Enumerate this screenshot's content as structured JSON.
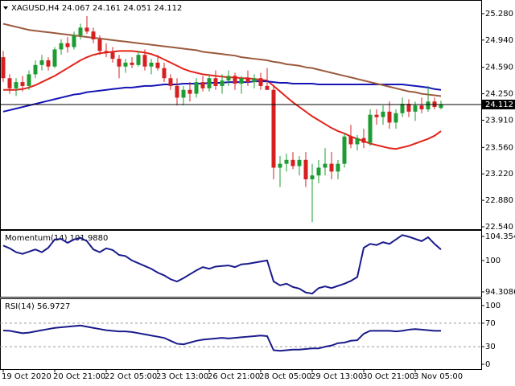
{
  "chart_data": [
    {
      "type": "candlestick",
      "title": "XAGUSD,H4  24.067 24.161 24.051 24.112",
      "categories": [
        "19 Oct 2020",
        null,
        null,
        null,
        null,
        null,
        null,
        null,
        "20 Oct 21:00",
        null,
        null,
        null,
        null,
        null,
        null,
        null,
        "22 Oct 05:00",
        null,
        null,
        null,
        null,
        null,
        null,
        null,
        "23 Oct 13:00",
        null,
        null,
        null,
        null,
        null,
        null,
        null,
        "26 Oct 21:00",
        null,
        null,
        null,
        null,
        null,
        null,
        null,
        "28 Oct 05:00",
        null,
        null,
        null,
        null,
        null,
        null,
        null,
        "29 Oct 13:00",
        null,
        null,
        null,
        null,
        null,
        null,
        null,
        "30 Oct 21:00",
        null,
        null,
        null,
        null,
        null,
        null,
        null,
        "3 Nov 05:00",
        null,
        null,
        null,
        null
      ],
      "candles": [
        [
          24.72,
          24.8,
          24.4,
          24.45
        ],
        [
          24.45,
          24.5,
          24.25,
          24.32
        ],
        [
          24.32,
          24.45,
          24.22,
          24.4
        ],
        [
          24.4,
          24.48,
          24.28,
          24.35
        ],
        [
          24.35,
          24.55,
          24.3,
          24.5
        ],
        [
          24.5,
          24.68,
          24.45,
          24.62
        ],
        [
          24.62,
          24.75,
          24.55,
          24.68
        ],
        [
          24.68,
          24.72,
          24.55,
          24.6
        ],
        [
          24.6,
          24.85,
          24.58,
          24.82
        ],
        [
          24.82,
          24.95,
          24.75,
          24.9
        ],
        [
          24.9,
          24.98,
          24.78,
          24.85
        ],
        [
          24.85,
          25.05,
          24.82,
          25.0
        ],
        [
          25.0,
          25.15,
          24.95,
          25.1
        ],
        [
          25.1,
          25.25,
          25.02,
          25.05
        ],
        [
          25.05,
          25.1,
          24.9,
          24.95
        ],
        [
          24.95,
          25.0,
          24.75,
          24.8
        ],
        [
          24.8,
          24.9,
          24.72,
          24.78
        ],
        [
          24.78,
          24.85,
          24.65,
          24.7
        ],
        [
          24.7,
          24.75,
          24.45,
          24.6
        ],
        [
          24.6,
          24.7,
          24.52,
          24.65
        ],
        [
          24.65,
          24.72,
          24.58,
          24.62
        ],
        [
          24.62,
          24.8,
          24.6,
          24.75
        ],
        [
          24.75,
          24.82,
          24.55,
          24.6
        ],
        [
          24.6,
          24.7,
          24.5,
          24.65
        ],
        [
          24.65,
          24.75,
          24.55,
          24.58
        ],
        [
          24.58,
          24.65,
          24.4,
          24.45
        ],
        [
          24.45,
          24.5,
          24.3,
          24.35
        ],
        [
          24.35,
          24.45,
          24.1,
          24.2
        ],
        [
          24.2,
          24.35,
          24.1,
          24.3
        ],
        [
          24.3,
          24.4,
          24.15,
          24.25
        ],
        [
          24.25,
          24.45,
          24.2,
          24.4
        ],
        [
          24.4,
          24.48,
          24.28,
          24.32
        ],
        [
          24.32,
          24.5,
          24.28,
          24.45
        ],
        [
          24.45,
          24.55,
          24.3,
          24.35
        ],
        [
          24.35,
          24.5,
          24.25,
          24.42
        ],
        [
          24.42,
          24.55,
          24.35,
          24.48
        ],
        [
          24.48,
          24.52,
          24.3,
          24.38
        ],
        [
          24.38,
          24.48,
          24.25,
          24.45
        ],
        [
          24.45,
          24.55,
          24.35,
          24.4
        ],
        [
          24.4,
          24.5,
          24.32,
          24.45
        ],
        [
          24.45,
          24.52,
          24.3,
          24.35
        ],
        [
          24.35,
          24.58,
          24.3,
          24.3
        ],
        [
          24.3,
          24.35,
          23.15,
          23.3
        ],
        [
          23.3,
          23.45,
          23.05,
          23.35
        ],
        [
          23.35,
          23.48,
          23.25,
          23.4
        ],
        [
          23.4,
          23.5,
          23.28,
          23.32
        ],
        [
          23.32,
          23.45,
          23.2,
          23.4
        ],
        [
          23.4,
          23.5,
          23.05,
          23.15
        ],
        [
          23.15,
          23.35,
          22.6,
          23.2
        ],
        [
          23.2,
          23.4,
          23.1,
          23.3
        ],
        [
          23.3,
          23.55,
          23.2,
          23.35
        ],
        [
          23.35,
          23.5,
          23.15,
          23.25
        ],
        [
          23.25,
          23.4,
          23.15,
          23.35
        ],
        [
          23.35,
          23.75,
          23.3,
          23.7
        ],
        [
          23.7,
          23.85,
          23.55,
          23.6
        ],
        [
          23.6,
          23.72,
          23.52,
          23.68
        ],
        [
          23.68,
          23.8,
          23.55,
          23.62
        ],
        [
          23.62,
          24.05,
          23.58,
          23.98
        ],
        [
          23.98,
          24.05,
          23.85,
          23.95
        ],
        [
          23.95,
          24.1,
          23.85,
          24.02
        ],
        [
          24.02,
          24.15,
          23.8,
          23.88
        ],
        [
          23.88,
          24.05,
          23.8,
          24.0
        ],
        [
          24.0,
          24.2,
          23.95,
          24.12
        ],
        [
          24.12,
          24.18,
          23.95,
          24.02
        ],
        [
          24.02,
          24.15,
          23.9,
          24.1
        ],
        [
          24.1,
          24.2,
          24.0,
          24.05
        ],
        [
          24.05,
          24.35,
          24.02,
          24.15
        ],
        [
          24.15,
          24.2,
          24.05,
          24.08
        ],
        [
          24.067,
          24.161,
          24.051,
          24.112
        ]
      ],
      "up_color": "#1e9c33",
      "down_color": "#d62020",
      "series": [
        {
          "color": "#e3241b",
          "values": [
            24.3,
            24.3,
            24.3,
            24.31,
            24.33,
            24.36,
            24.4,
            24.44,
            24.48,
            24.53,
            24.58,
            24.63,
            24.68,
            24.72,
            24.75,
            24.77,
            24.78,
            24.79,
            24.8,
            24.8,
            24.8,
            24.79,
            24.78,
            24.76,
            24.73,
            24.69,
            24.65,
            24.61,
            24.57,
            24.54,
            24.52,
            24.5,
            24.49,
            24.48,
            24.47,
            24.46,
            24.46,
            24.45,
            24.45,
            24.44,
            24.43,
            24.42,
            24.35,
            24.28,
            24.21,
            24.14,
            24.08,
            24.02,
            23.96,
            23.91,
            23.86,
            23.81,
            23.77,
            23.74,
            23.7,
            23.67,
            23.64,
            23.61,
            23.59,
            23.57,
            23.55,
            23.54,
            23.56,
            23.58,
            23.61,
            23.64,
            23.67,
            23.71,
            23.77
          ]
        },
        {
          "color": "#1515b5",
          "values": [
            24.02,
            24.04,
            24.06,
            24.08,
            24.1,
            24.12,
            24.14,
            24.16,
            24.18,
            24.2,
            24.22,
            24.24,
            24.25,
            24.27,
            24.28,
            24.29,
            24.3,
            24.31,
            24.32,
            24.33,
            24.33,
            24.34,
            24.35,
            24.35,
            24.36,
            24.37,
            24.37,
            24.37,
            24.38,
            24.38,
            24.38,
            24.38,
            24.39,
            24.39,
            24.39,
            24.4,
            24.4,
            24.4,
            24.4,
            24.41,
            24.41,
            24.41,
            24.4,
            24.39,
            24.39,
            24.38,
            24.38,
            24.38,
            24.38,
            24.37,
            24.37,
            24.37,
            24.37,
            24.37,
            24.37,
            24.37,
            24.37,
            24.37,
            24.37,
            24.37,
            24.37,
            24.37,
            24.37,
            24.36,
            24.35,
            24.34,
            24.33,
            24.31,
            24.3
          ]
        },
        {
          "color": "#9b5a3c",
          "values": [
            25.15,
            25.13,
            25.11,
            25.09,
            25.07,
            25.06,
            25.05,
            25.04,
            25.03,
            25.02,
            25.01,
            25.0,
            24.99,
            24.98,
            24.97,
            24.96,
            24.95,
            24.94,
            24.93,
            24.92,
            24.91,
            24.9,
            24.89,
            24.88,
            24.87,
            24.86,
            24.85,
            24.84,
            24.83,
            24.82,
            24.81,
            24.79,
            24.78,
            24.77,
            24.76,
            24.75,
            24.74,
            24.72,
            24.71,
            24.7,
            24.69,
            24.68,
            24.66,
            24.65,
            24.63,
            24.62,
            24.61,
            24.59,
            24.58,
            24.56,
            24.54,
            24.52,
            24.5,
            24.48,
            24.46,
            24.44,
            24.42,
            24.4,
            24.38,
            24.36,
            24.34,
            24.32,
            24.3,
            24.28,
            24.27,
            24.25,
            24.24,
            24.23,
            24.22
          ]
        }
      ],
      "price_line": {
        "value": 24.112,
        "label": "24.112"
      },
      "ylim": [
        22.509,
        25.445
      ],
      "yticks": [
        {
          "value": 25.28,
          "label": "25.280"
        },
        {
          "value": 24.94,
          "label": "24.940"
        },
        {
          "value": 24.59,
          "label": "24.590"
        },
        {
          "value": 24.25,
          "label": "24.250"
        },
        {
          "value": 23.91,
          "label": "23.910"
        },
        {
          "value": 23.56,
          "label": "23.560"
        },
        {
          "value": 23.22,
          "label": "23.220"
        },
        {
          "value": 22.88,
          "label": "22.880"
        },
        {
          "value": 22.54,
          "label": "22.540"
        }
      ]
    },
    {
      "type": "line",
      "title": "Momentum(14) 101.9880",
      "color": "#1a1a8c",
      "values": [
        102.7,
        102.2,
        101.5,
        101.2,
        101.6,
        102.0,
        101.5,
        102.3,
        103.8,
        103.9,
        103.2,
        103.8,
        104.1,
        103.5,
        102.0,
        101.5,
        102.2,
        101.9,
        101.0,
        100.8,
        100.0,
        99.5,
        99.0,
        98.5,
        97.8,
        97.3,
        96.6,
        96.2,
        96.8,
        97.5,
        98.2,
        98.8,
        98.5,
        98.9,
        99.0,
        99.1,
        98.8,
        99.3,
        99.4,
        99.6,
        99.8,
        100.0,
        96.2,
        95.5,
        95.8,
        95.2,
        94.9,
        94.2,
        94.0,
        95.0,
        95.3,
        95.0,
        95.4,
        95.8,
        96.3,
        97.0,
        102.3,
        103.0,
        102.8,
        103.3,
        103.0,
        103.8,
        104.6,
        104.3,
        103.9,
        103.5,
        104.2,
        103.0,
        101.988
      ],
      "ylim": [
        93.435,
        105.374
      ],
      "yticks": [
        104.3549,
        100,
        94.3086
      ]
    },
    {
      "type": "line",
      "title": "RSI(14) 56.9727",
      "color": "#1a1a8c",
      "values": [
        57.5,
        57,
        55,
        53,
        54,
        56,
        58,
        60,
        62,
        63,
        64,
        65,
        66,
        64,
        62,
        60,
        58,
        57,
        56,
        56,
        55,
        53,
        51,
        49,
        47,
        45,
        40,
        35,
        34,
        37,
        40,
        42,
        43,
        44,
        45,
        44,
        45,
        46,
        47,
        48,
        49,
        48,
        24,
        23,
        24,
        25,
        25,
        26,
        27,
        27,
        30,
        32,
        36,
        37,
        40,
        41,
        52,
        57,
        57,
        57,
        57,
        56,
        57,
        59,
        60,
        59,
        58,
        57,
        56.9727
      ],
      "ylim": [
        -8.22,
        110.96
      ],
      "yticks": [
        100,
        70,
        30,
        0
      ],
      "level_lines": [
        70,
        30
      ]
    }
  ]
}
